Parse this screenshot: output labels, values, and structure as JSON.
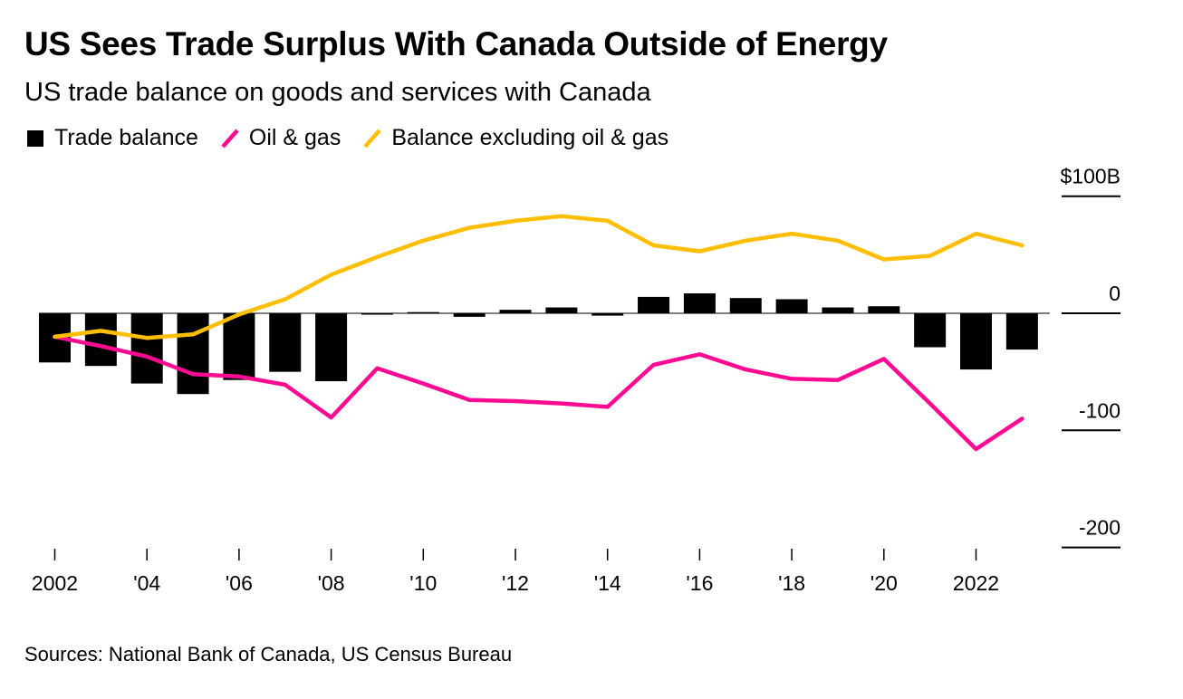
{
  "header": {
    "title": "US Sees Trade Surplus With Canada Outside of Energy",
    "subtitle": "US trade balance on goods and services with Canada"
  },
  "legend": [
    {
      "label": "Trade balance",
      "kind": "box",
      "color": "#000000"
    },
    {
      "label": "Oil & gas",
      "kind": "line",
      "color": "#ff0a93"
    },
    {
      "label": "Balance excluding oil & gas",
      "kind": "line",
      "color": "#ffbf00"
    }
  ],
  "footer": {
    "source": "Sources: National Bank of Canada, US Census Bureau"
  },
  "chart_data": {
    "type": "bar+line",
    "title": "US Sees Trade Surplus With Canada Outside of Energy",
    "subtitle": "US trade balance on goods and services with Canada",
    "xlabel": "",
    "ylabel": "",
    "unit": "$B",
    "ylim": [
      -200,
      100
    ],
    "yticks": [
      {
        "value": 100,
        "label": "$100B"
      },
      {
        "value": 0,
        "label": "0"
      },
      {
        "value": -100,
        "label": "-100"
      },
      {
        "value": -200,
        "label": "-200"
      }
    ],
    "x": [
      2002,
      2003,
      2004,
      2005,
      2006,
      2007,
      2008,
      2009,
      2010,
      2011,
      2012,
      2013,
      2014,
      2015,
      2016,
      2017,
      2018,
      2019,
      2020,
      2021,
      2022,
      2023
    ],
    "xticks": [
      {
        "value": 2002,
        "label": "2002"
      },
      {
        "value": 2004,
        "label": "'04"
      },
      {
        "value": 2006,
        "label": "'06"
      },
      {
        "value": 2008,
        "label": "'08"
      },
      {
        "value": 2010,
        "label": "'10"
      },
      {
        "value": 2012,
        "label": "'12"
      },
      {
        "value": 2014,
        "label": "'14"
      },
      {
        "value": 2016,
        "label": "'16"
      },
      {
        "value": 2018,
        "label": "'18"
      },
      {
        "value": 2020,
        "label": "'20"
      },
      {
        "value": 2022,
        "label": "2022"
      }
    ],
    "grid": false,
    "legend_position": "top-left",
    "series": [
      {
        "name": "Trade balance",
        "type": "bar",
        "color": "#000000",
        "values": [
          -42,
          -45,
          -60,
          -69,
          -57,
          -50,
          -58,
          -1,
          1,
          -3,
          3,
          5,
          -2,
          14,
          17,
          13,
          12,
          5,
          6,
          -29,
          -48,
          -31
        ]
      },
      {
        "name": "Oil & gas",
        "type": "line",
        "color": "#ff0a93",
        "values": [
          -20,
          -28,
          -37,
          -52,
          -54,
          -61,
          -89,
          -47,
          -60,
          -74,
          -75,
          -77,
          -80,
          -44,
          -35,
          -48,
          -56,
          -57,
          -39,
          -77,
          -116,
          -90
        ]
      },
      {
        "name": "Balance excluding oil & gas",
        "type": "line",
        "color": "#ffbf00",
        "values": [
          -20,
          -15,
          -21,
          -18,
          -1,
          12,
          33,
          48,
          62,
          73,
          79,
          83,
          79,
          58,
          53,
          62,
          68,
          62,
          46,
          49,
          68,
          58
        ]
      }
    ]
  }
}
